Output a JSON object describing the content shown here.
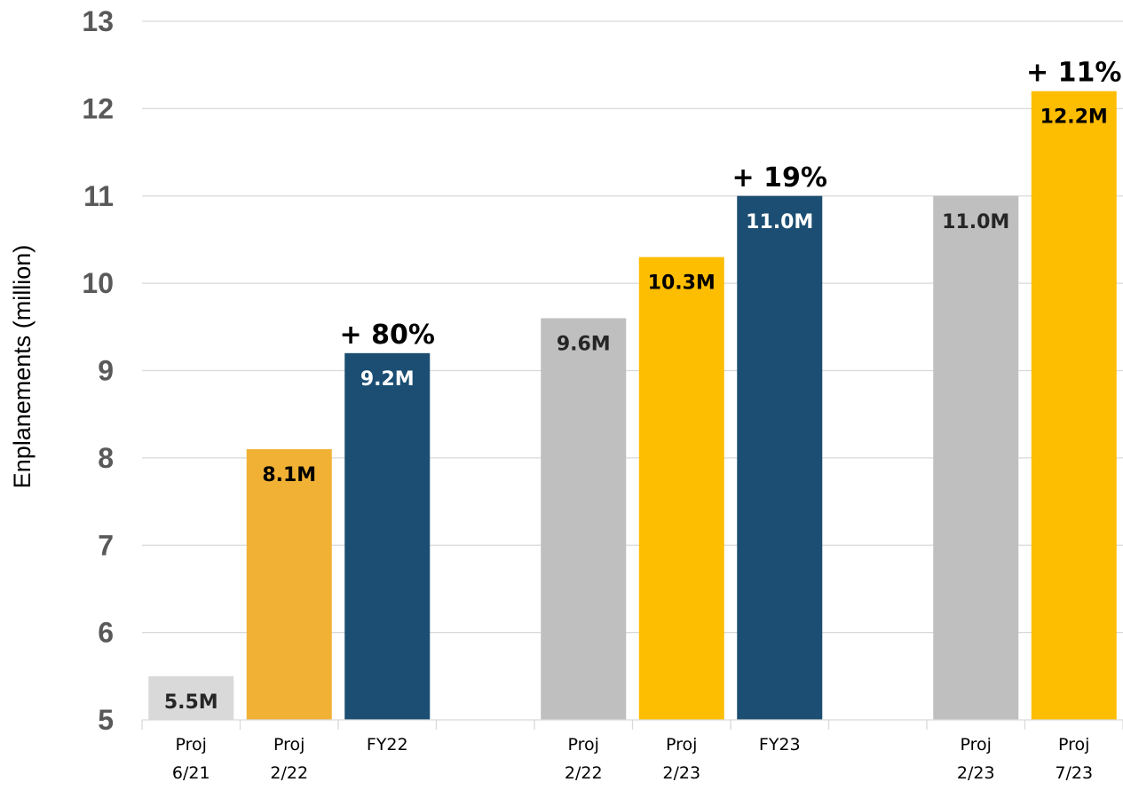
{
  "chart_data": {
    "type": "bar",
    "ylabel": "Enplanements (million)",
    "xlabel": "",
    "ylim": [
      5,
      13
    ],
    "yticks": [
      5,
      6,
      7,
      8,
      9,
      10,
      11,
      12,
      13
    ],
    "grid": true,
    "colors": {
      "light_gray": "#d9d9d9",
      "mid_gray": "#bfbfbf",
      "gold": "#f0b135",
      "yellow": "#fdbd00",
      "navy": "#1b4e72"
    },
    "groups": [
      {
        "bars": [
          {
            "label_lines": [
              "Proj",
              "6/21"
            ],
            "value": 5.5,
            "value_label": "5.5M",
            "color": "#d9d9d9",
            "label_color": "#262626"
          },
          {
            "label_lines": [
              "Proj",
              "2/22"
            ],
            "value": 8.1,
            "value_label": "8.1M",
            "color": "#f0b135",
            "label_color": "#000000"
          },
          {
            "label_lines": [
              "FY22"
            ],
            "value": 9.2,
            "value_label": "9.2M",
            "color": "#1b4e72",
            "label_color": "#ffffff",
            "annotation": "+ 80%"
          }
        ]
      },
      {
        "bars": [
          {
            "label_lines": [
              "Proj",
              "2/22"
            ],
            "value": 9.6,
            "value_label": "9.6M",
            "color": "#bfbfbf",
            "label_color": "#262626"
          },
          {
            "label_lines": [
              "Proj",
              "2/23"
            ],
            "value": 10.3,
            "value_label": "10.3M",
            "color": "#fdbd00",
            "label_color": "#000000"
          },
          {
            "label_lines": [
              "FY23"
            ],
            "value": 11.0,
            "value_label": "11.0M",
            "color": "#1b4e72",
            "label_color": "#ffffff",
            "annotation": "+ 19%"
          }
        ]
      },
      {
        "bars": [
          {
            "label_lines": [
              "Proj",
              "2/23"
            ],
            "value": 11.0,
            "value_label": "11.0M",
            "color": "#bfbfbf",
            "label_color": "#262626"
          },
          {
            "label_lines": [
              "Proj",
              "7/23"
            ],
            "value": 12.2,
            "value_label": "12.2M",
            "color": "#fdbd00",
            "label_color": "#000000",
            "annotation": "+ 11%"
          }
        ]
      }
    ]
  }
}
